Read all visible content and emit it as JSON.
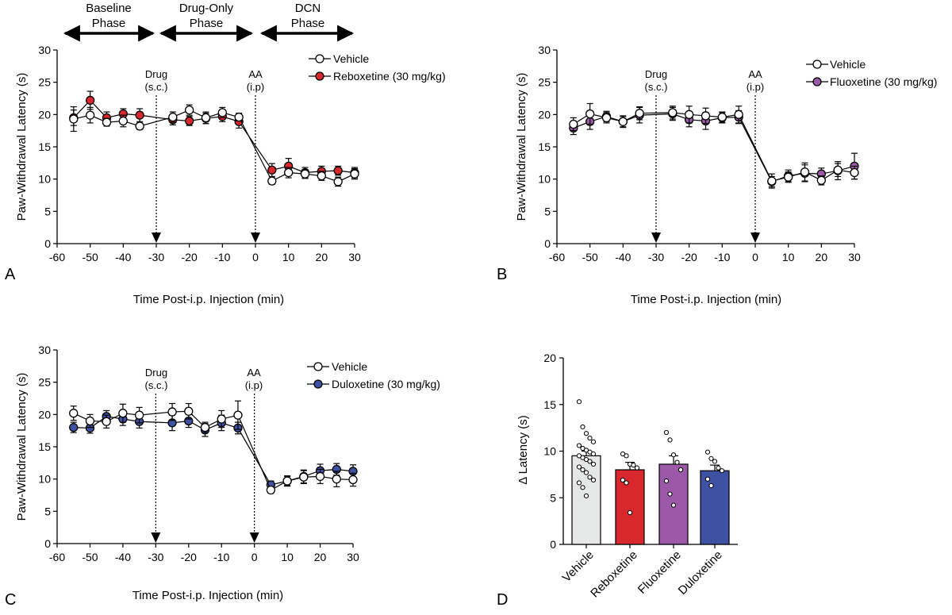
{
  "panel_labels": [
    "A",
    "B",
    "C",
    "D"
  ],
  "phases": [
    {
      "line1": "Baseline",
      "line2": "Phase"
    },
    {
      "line1": "Drug-Only",
      "line2": "Phase"
    },
    {
      "line1": "DCN",
      "line2": "Phase"
    }
  ],
  "annotations": {
    "drug_line1": "Drug",
    "drug_line2": "(s.c.)",
    "aa_line1": "AA",
    "aa_line2": "(i.p)"
  },
  "colors": {
    "vehicle": "#ffffff",
    "reboxetine": "#d7282d",
    "fluoxetine": "#9b59a8",
    "duloxetine": "#3f51a3",
    "vehicle_bar": "#e6e8e8"
  },
  "chart_data": [
    {
      "type": "line",
      "panel": "A",
      "xlabel": "Time Post-i.p. Injection (min)",
      "ylabel": "Paw-Withdrawal Latency (s)",
      "xlim": [
        -60,
        30
      ],
      "ylim": [
        0,
        30
      ],
      "xticks": [
        -60,
        -50,
        -40,
        -30,
        -20,
        -10,
        0,
        10,
        20,
        30
      ],
      "yticks": [
        0,
        5,
        10,
        15,
        20,
        25,
        30
      ],
      "series": [
        {
          "name": "Vehicle",
          "color_key": "vehicle",
          "x": [
            -55,
            -50,
            -45,
            -40,
            -35,
            -25,
            -20,
            -15,
            -10,
            -5,
            5,
            10,
            15,
            20,
            25,
            30
          ],
          "y": [
            19.3,
            19.9,
            18.8,
            19.0,
            18.2,
            19.6,
            20.7,
            19.5,
            20.3,
            19.6,
            9.7,
            11.0,
            10.8,
            10.5,
            9.6,
            10.8
          ],
          "err": [
            1.9,
            1.2,
            0.6,
            0.9,
            0.5,
            0.8,
            0.8,
            0.9,
            0.8,
            0.6,
            0.5,
            0.8,
            0.7,
            0.7,
            0.7,
            0.8
          ]
        },
        {
          "name": "Reboxetine (30 mg/kg)",
          "color_key": "reboxetine",
          "x": [
            -55,
            -50,
            -45,
            -40,
            -35,
            -25,
            -20,
            -15,
            -10,
            -5,
            5,
            10,
            15,
            20,
            25,
            30
          ],
          "y": [
            19.5,
            22.2,
            19.5,
            20.1,
            19.9,
            19.2,
            19.0,
            19.4,
            19.7,
            18.9,
            11.4,
            12.0,
            11.0,
            11.2,
            11.3,
            11.0
          ],
          "err": [
            1.2,
            1.4,
            0.9,
            0.8,
            1.0,
            0.8,
            0.7,
            0.8,
            0.8,
            1.0,
            1.0,
            1.2,
            0.8,
            0.8,
            0.7,
            0.8
          ]
        }
      ]
    },
    {
      "type": "line",
      "panel": "B",
      "xlabel": "Time Post-i.p. Injection (min)",
      "ylabel": "Paw-Withdrawal Latency (s)",
      "xlim": [
        -60,
        30
      ],
      "ylim": [
        0,
        30
      ],
      "xticks": [
        -60,
        -50,
        -40,
        -30,
        -20,
        -10,
        0,
        10,
        20,
        30
      ],
      "yticks": [
        0,
        5,
        10,
        15,
        20,
        25,
        30
      ],
      "series": [
        {
          "name": "Vehicle",
          "color_key": "vehicle",
          "x": [
            -55,
            -50,
            -45,
            -40,
            -35,
            -25,
            -20,
            -15,
            -10,
            -5,
            5,
            10,
            15,
            20,
            25,
            30
          ],
          "y": [
            18.5,
            20.1,
            19.5,
            18.9,
            20.2,
            20.3,
            20.0,
            19.8,
            19.6,
            20.0,
            9.7,
            10.3,
            11.1,
            9.8,
            11.4,
            11.0
          ],
          "err": [
            1.0,
            1.6,
            0.8,
            0.9,
            1.0,
            1.0,
            1.3,
            1.2,
            0.8,
            1.3,
            1.1,
            0.8,
            1.4,
            0.7,
            1.0,
            1.0
          ]
        },
        {
          "name": "Fluoxetine (30 mg/kg)",
          "color_key": "fluoxetine",
          "x": [
            -55,
            -50,
            -45,
            -40,
            -35,
            -25,
            -20,
            -15,
            -10,
            -5,
            5,
            10,
            15,
            20,
            25,
            30
          ],
          "y": [
            17.9,
            18.9,
            19.7,
            18.9,
            19.9,
            20.1,
            19.2,
            19.0,
            19.5,
            19.6,
            9.6,
            10.5,
            10.9,
            10.8,
            11.3,
            12.0
          ],
          "err": [
            1.0,
            1.2,
            0.8,
            0.8,
            1.2,
            1.0,
            1.1,
            1.3,
            0.8,
            1.0,
            0.8,
            0.9,
            1.3,
            0.9,
            1.4,
            2.0
          ]
        }
      ]
    },
    {
      "type": "line",
      "panel": "C",
      "xlabel": "Time Post-i.p. Injection (min)",
      "ylabel": "Paw-Withdrawal Latency (s)",
      "xlim": [
        -60,
        30
      ],
      "ylim": [
        0,
        30
      ],
      "xticks": [
        -60,
        -50,
        -40,
        -30,
        -20,
        -10,
        0,
        10,
        20,
        30
      ],
      "yticks": [
        0,
        5,
        10,
        15,
        20,
        25,
        30
      ],
      "series": [
        {
          "name": "Vehicle",
          "color_key": "vehicle",
          "x": [
            -55,
            -50,
            -45,
            -40,
            -35,
            -25,
            -20,
            -15,
            -10,
            -5,
            5,
            10,
            15,
            20,
            25,
            30
          ],
          "y": [
            20.2,
            19.0,
            18.9,
            20.2,
            19.9,
            20.4,
            20.5,
            18.0,
            19.3,
            19.9,
            8.3,
            9.7,
            10.3,
            10.4,
            10.0,
            9.9
          ],
          "err": [
            1.1,
            1.0,
            1.0,
            1.4,
            1.2,
            1.3,
            1.2,
            0.8,
            1.3,
            2.2,
            0.5,
            0.8,
            1.0,
            1.1,
            1.2,
            1.0
          ]
        },
        {
          "name": "Duloxetine (30 mg/kg)",
          "color_key": "duloxetine",
          "x": [
            -55,
            -50,
            -45,
            -40,
            -35,
            -25,
            -20,
            -15,
            -10,
            -5,
            5,
            10,
            15,
            20,
            25,
            30
          ],
          "y": [
            18.0,
            17.9,
            19.7,
            19.3,
            18.9,
            18.7,
            19.0,
            17.6,
            18.7,
            17.9,
            9.1,
            9.7,
            10.4,
            11.3,
            11.5,
            11.2
          ],
          "err": [
            0.8,
            0.8,
            0.9,
            1.0,
            1.0,
            1.2,
            1.0,
            1.0,
            1.2,
            0.9,
            0.6,
            0.7,
            1.0,
            1.0,
            0.9,
            1.0
          ]
        }
      ]
    },
    {
      "type": "bar",
      "panel": "D",
      "ylabel": "Δ Latency (s)",
      "ylim": [
        0,
        20
      ],
      "yticks": [
        0,
        5,
        10,
        15,
        20
      ],
      "categories": [
        "Vehicle",
        "Reboxetine",
        "Fluoxetine",
        "Duloxetine"
      ],
      "color_keys": [
        "vehicle_bar",
        "reboxetine",
        "fluoxetine",
        "duloxetine"
      ],
      "values": [
        9.5,
        8.0,
        8.6,
        7.9
      ],
      "err": [
        0.5,
        0.8,
        0.9,
        0.6
      ],
      "points": [
        [
          15.3,
          12.6,
          11.9,
          11.4,
          11.0,
          10.6,
          10.3,
          10.1,
          9.9,
          9.7,
          9.5,
          9.3,
          9.1,
          8.9,
          8.6,
          8.3,
          8.0,
          7.7,
          7.2,
          6.9,
          6.6,
          6.1,
          5.2
        ],
        [
          9.7,
          9.5,
          8.6,
          8.5,
          8.2,
          6.9,
          6.6,
          3.4
        ],
        [
          12.0,
          11.2,
          9.6,
          8.8,
          8.0,
          6.8,
          5.4,
          4.2
        ],
        [
          9.9,
          9.2,
          8.9,
          8.2,
          7.9,
          7.0,
          6.3
        ]
      ]
    }
  ]
}
